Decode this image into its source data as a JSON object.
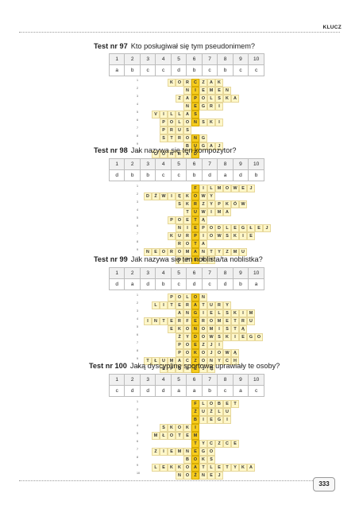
{
  "header": {
    "label": "KLUCZ"
  },
  "page_number": "333",
  "tests": [
    {
      "number": "Test nr 97",
      "question": "Kto posługiwał się tym pseudonimem?",
      "headers": [
        "1",
        "2",
        "3",
        "4",
        "5",
        "6",
        "7",
        "8",
        "9",
        "10"
      ],
      "answers": [
        "a",
        "b",
        "c",
        "c",
        "d",
        "b",
        "c",
        "b",
        "c",
        "c"
      ],
      "key_column": 6,
      "rows": [
        {
          "n": "1",
          "start": 3,
          "text": "KORCZAK"
        },
        {
          "n": "2",
          "start": 5,
          "text": "NIEMEN"
        },
        {
          "n": "3",
          "start": 4,
          "text": "ZAPOLSKA"
        },
        {
          "n": "4",
          "start": 5,
          "text": "NEGRI"
        },
        {
          "n": "5",
          "start": 1,
          "text": "VILLAS"
        },
        {
          "n": "6",
          "start": 2,
          "text": "POLONSKI"
        },
        {
          "n": "7",
          "start": 2,
          "text": "PRUS"
        },
        {
          "n": "8",
          "start": 2,
          "text": "STRONG"
        },
        {
          "n": "9",
          "start": 5,
          "text": "BUGAJ"
        },
        {
          "n": "10",
          "start": 1,
          "text": "CONRAD"
        }
      ]
    },
    {
      "number": "Test nr 98",
      "question": "Jak nazywa się ten kompozytor?",
      "headers": [
        "1",
        "2",
        "3",
        "4",
        "5",
        "6",
        "7",
        "8",
        "9",
        "10"
      ],
      "answers": [
        "d",
        "b",
        "b",
        "c",
        "c",
        "b",
        "d",
        "a",
        "d",
        "b"
      ],
      "key_column": 6,
      "rows": [
        {
          "n": "1",
          "start": 6,
          "text": "FILMOWEJ"
        },
        {
          "n": "2",
          "start": 0,
          "text": "DŹWIĘKOWY"
        },
        {
          "n": "3",
          "start": 4,
          "text": "SKRZYPKÓW"
        },
        {
          "n": "4",
          "start": 5,
          "text": "TUWIMA"
        },
        {
          "n": "5",
          "start": 3,
          "text": "POETĄ"
        },
        {
          "n": "6",
          "start": 4,
          "text": "NIEPODLEGŁEJ"
        },
        {
          "n": "7",
          "start": 3,
          "text": "KURPIOWSKIE"
        },
        {
          "n": "8",
          "start": 4,
          "text": "ROTA"
        },
        {
          "n": "9",
          "start": 0,
          "text": "NEOROMANTYZMU"
        },
        {
          "n": "10",
          "start": 4,
          "text": "OPERY"
        }
      ]
    },
    {
      "number": "Test nr 99",
      "question": "Jak nazywa się ten noblista/ta noblistka?",
      "headers": [
        "1",
        "2",
        "3",
        "4",
        "5",
        "6",
        "7",
        "8",
        "9",
        "10"
      ],
      "answers": [
        "d",
        "a",
        "d",
        "b",
        "c",
        "d",
        "c",
        "d",
        "b",
        "a"
      ],
      "key_column": 6,
      "rows": [
        {
          "n": "1",
          "start": 3,
          "text": "POLON"
        },
        {
          "n": "2",
          "start": 1,
          "text": "LITERATURY"
        },
        {
          "n": "3",
          "start": 4,
          "text": "ANGIELSKIM"
        },
        {
          "n": "4",
          "start": 0,
          "text": "INTERFEROMETRU"
        },
        {
          "n": "5",
          "start": 3,
          "text": "EKONOMISTĄ"
        },
        {
          "n": "6",
          "start": 4,
          "text": "ŻYDOWSKIEGO"
        },
        {
          "n": "7",
          "start": 4,
          "text": "POEZJI"
        },
        {
          "n": "8",
          "start": 4,
          "text": "POKOJOWĄ"
        },
        {
          "n": "9",
          "start": 0,
          "text": "TŁUMACZONYCH"
        },
        {
          "n": "10",
          "start": 2,
          "text": "EPOPEJĘ"
        }
      ]
    },
    {
      "number": "Test nr 100",
      "question": "Jaką dyscyplinę sportową uprawiały te osoby?",
      "headers": [
        "1",
        "2",
        "3",
        "4",
        "5",
        "6",
        "7",
        "8",
        "9",
        "10"
      ],
      "answers": [
        "c",
        "d",
        "d",
        "d",
        "a",
        "a",
        "b",
        "c",
        "a",
        "c"
      ],
      "key_column": 6,
      "rows": [
        {
          "n": "1",
          "start": 6,
          "text": "FLOBET"
        },
        {
          "n": "2",
          "start": 6,
          "text": "ŻUŻLU"
        },
        {
          "n": "3",
          "start": 6,
          "text": "BIEGI"
        },
        {
          "n": "4",
          "start": 2,
          "text": "SKOKI"
        },
        {
          "n": "5",
          "start": 1,
          "text": "MŁOTEM"
        },
        {
          "n": "6",
          "start": 6,
          "text": "TYCZCE"
        },
        {
          "n": "7",
          "start": 1,
          "text": "ZIEMNEGO"
        },
        {
          "n": "8",
          "start": 5,
          "text": "BOKS"
        },
        {
          "n": "9",
          "start": 1,
          "text": "LEKKOATLETYKA"
        },
        {
          "n": "10",
          "start": 4,
          "text": "NOŻNEJ"
        }
      ]
    }
  ]
}
